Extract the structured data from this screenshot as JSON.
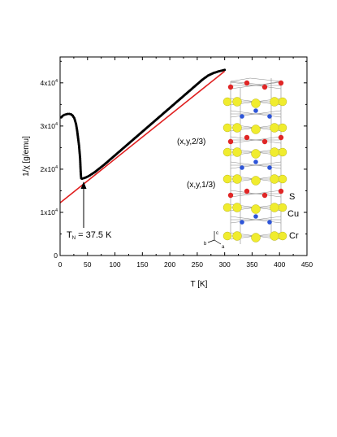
{
  "chart_data": {
    "type": "scatter",
    "xlabel": "T [K]",
    "ylabel": "1/χ [g/emu]",
    "xlim": [
      0,
      450
    ],
    "ylim": [
      0,
      46000
    ],
    "x_ticks": [
      0,
      50,
      100,
      150,
      200,
      250,
      300,
      350,
      400,
      450
    ],
    "x_tick_labels": [
      "0",
      "50",
      "100",
      "150",
      "200",
      "250",
      "300",
      "350",
      "400",
      "450"
    ],
    "y_ticks": [
      0,
      10000,
      20000,
      30000,
      40000
    ],
    "y_tick_labels": [
      {
        "base": "0",
        "exp": ""
      },
      {
        "base": "1x10",
        "exp": "4"
      },
      {
        "base": "2x10",
        "exp": "4"
      },
      {
        "base": "3x10",
        "exp": "4"
      },
      {
        "base": "4x10",
        "exp": "4"
      }
    ],
    "series": [
      {
        "color": "#000000",
        "style": "markers",
        "x": [
          2,
          5,
          8,
          11,
          14,
          17,
          20,
          23,
          26,
          29,
          31,
          33,
          34.5,
          35.5,
          36.5,
          37,
          37.5,
          38,
          38.5,
          40,
          43,
          47,
          52,
          57,
          63,
          70,
          80,
          90,
          100,
          110,
          120,
          130,
          140,
          150,
          160,
          170,
          180,
          190,
          200,
          210,
          220,
          230,
          240,
          250,
          260,
          270,
          280,
          290,
          300
        ],
        "y": [
          32000,
          32400,
          32600,
          32700,
          32800,
          32800,
          32700,
          32400,
          31800,
          30500,
          29000,
          27000,
          25500,
          24000,
          22500,
          21000,
          19500,
          18500,
          17900,
          17800,
          17900,
          18100,
          18400,
          18800,
          19300,
          20000,
          21000,
          22100,
          23200,
          24300,
          25400,
          26500,
          27600,
          28700,
          29800,
          30900,
          32000,
          33100,
          34200,
          35300,
          36400,
          37500,
          38600,
          39700,
          40800,
          41700,
          42300,
          42700,
          43000
        ]
      },
      {
        "color": "#e02020",
        "style": "line",
        "x": [
          0,
          300
        ],
        "y": [
          12200,
          42700
        ]
      }
    ],
    "annotations": {
      "tn_label": "T",
      "tn_sub": "N",
      "tn_value": " = 37.5 K"
    }
  },
  "structure": {
    "labels": {
      "layer_top": "(x,y,2/3)",
      "layer_mid": "(x,y,1/3)",
      "legend_s": "S",
      "legend_cu": "Cu",
      "legend_cr": "Cr",
      "axis_c": "c",
      "axis_b": "b",
      "axis_a": "a"
    },
    "colors": {
      "S": "#f0ec2e",
      "Cu": "#2d55d8",
      "Cr": "#e02626",
      "bond": "#888888"
    }
  }
}
